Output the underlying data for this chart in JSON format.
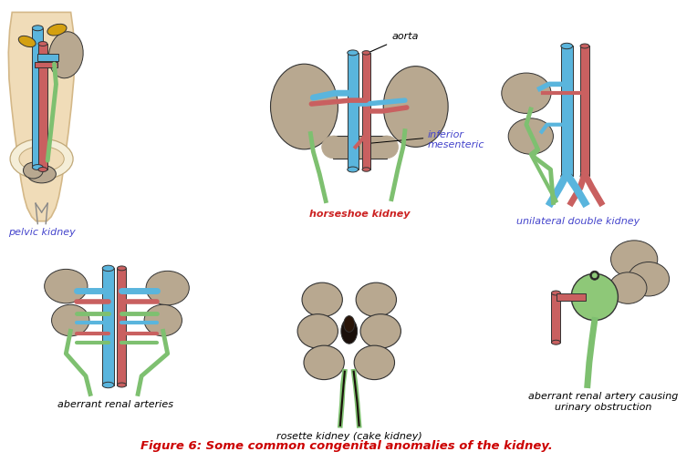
{
  "title": "Figure 6: Some common congenital anomalies of the kidney.",
  "title_color": "#cc0000",
  "title_fontsize": 9.5,
  "background_color": "#ffffff",
  "labels": {
    "pelvic_kidney": "pelvic kidney",
    "horseshoe_kidney": "horseshoe kidney",
    "unilateral_double": "unilateral double kidney",
    "aberrant_renal": "aberrant renal arteries",
    "rosette_kidney": "rosette kidney (cake kidney)",
    "aberrant_causing": "aberrant renal artery causing\nurinary obstruction",
    "aorta": "aorta",
    "inferior_mesenteric": "inferior\nmesenteric"
  },
  "label_color_black": "#000000",
  "label_color_blue": "#4444cc",
  "label_color_red": "#cc2222",
  "label_fontsize": 8,
  "colors": {
    "aorta": "#c96060",
    "vena_cava": "#5ab5dd",
    "ureter": "#7ec070",
    "kidney": "#b8a890",
    "kidney_dark": "#a09080",
    "skin": "#f0dcb8",
    "skin_edge": "#d4b888",
    "green_kidney": "#8ec878",
    "yellow_adrenal": "#d4a010"
  }
}
